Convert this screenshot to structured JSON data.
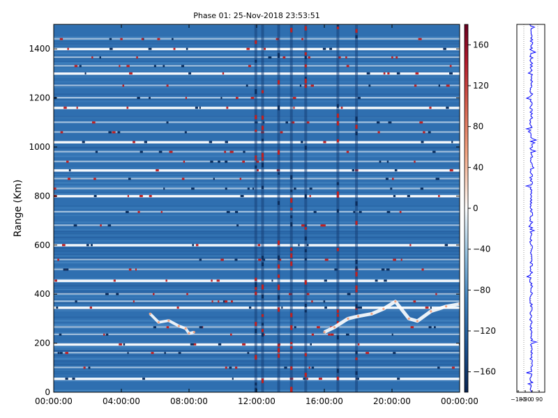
{
  "chart_data": {
    "type": "heatmap",
    "title": "Phase 01: 25-Nov-2018 23:53:51",
    "xlabel": "",
    "ylabel": "Range (Km)",
    "x_ticks": [
      "00:00:00",
      "04:00:00",
      "08:00:00",
      "12:00:00",
      "16:00:00",
      "20:00:00",
      "00:00:00"
    ],
    "x_range_hours": [
      0,
      24
    ],
    "y_ticks": [
      0,
      200,
      400,
      600,
      800,
      1000,
      1200,
      1400
    ],
    "y_range": [
      0,
      1500
    ],
    "colorbar": {
      "ticks": [
        160,
        120,
        80,
        40,
        0,
        -40,
        -80,
        -120,
        -160
      ],
      "range": [
        -180,
        180
      ],
      "colormap": "RdBu_r"
    },
    "profile": {
      "x_ticks": [
        "−180",
        "−90",
        "0",
        "90"
      ],
      "x_range": [
        -180,
        180
      ],
      "line_color": "#0000ff"
    },
    "colors": {
      "background_blue": "#2f6fb0",
      "interference_white": "#ffffff",
      "interference_red": "#c02020"
    },
    "horizontal_interference_bands_km": [
      55,
      100,
      160,
      195,
      235,
      265,
      345,
      370,
      400,
      455,
      500,
      540,
      600,
      680,
      735,
      800,
      830,
      870,
      905,
      940,
      980,
      1020,
      1060,
      1100,
      1160,
      1200,
      1250,
      1300,
      1330,
      1365,
      1400,
      1440
    ],
    "vertical_interference_bands_hours": [
      11.95,
      12.35,
      13.3,
      14.05,
      14.9,
      16.8,
      17.9
    ],
    "trace_lower": [
      [
        5.7,
        320
      ],
      [
        6.2,
        285
      ],
      [
        6.8,
        292
      ],
      [
        7.4,
        270
      ],
      [
        7.8,
        260
      ],
      [
        8.0,
        240
      ],
      [
        8.3,
        245
      ]
    ],
    "trace_upper": [
      [
        16.0,
        245
      ],
      [
        16.6,
        265
      ],
      [
        17.4,
        300
      ],
      [
        18.0,
        310
      ],
      [
        18.8,
        320
      ],
      [
        19.5,
        340
      ],
      [
        20.2,
        370
      ],
      [
        21.0,
        300
      ],
      [
        21.5,
        290
      ],
      [
        22.3,
        330
      ],
      [
        23.2,
        350
      ],
      [
        24.0,
        360
      ]
    ]
  }
}
